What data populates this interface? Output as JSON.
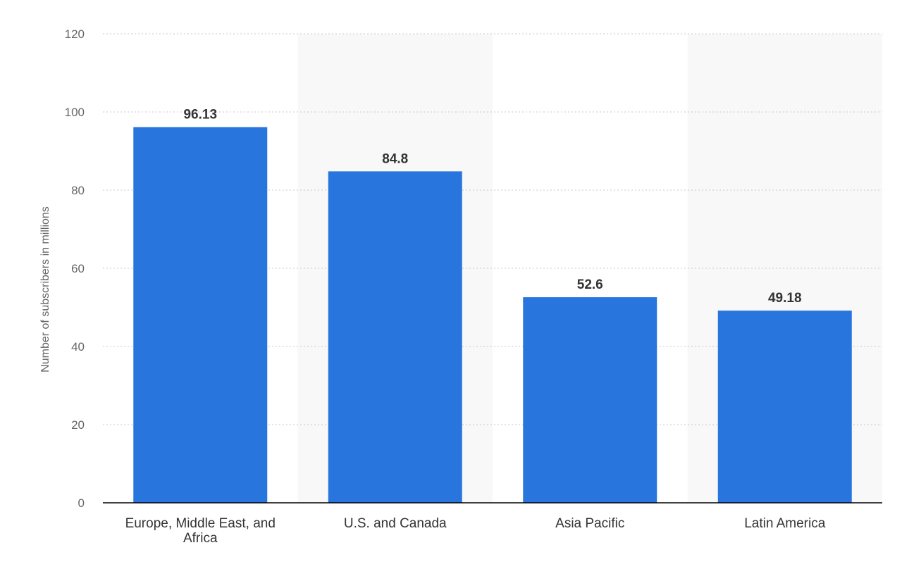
{
  "chart_data": {
    "type": "bar",
    "categories": [
      "Europe, Middle East, and Africa",
      "U.S. and Canada",
      "Asia Pacific",
      "Latin America"
    ],
    "category_lines": [
      [
        "Europe, Middle East, and",
        "Africa"
      ],
      [
        "U.S. and Canada"
      ],
      [
        "Asia Pacific"
      ],
      [
        "Latin America"
      ]
    ],
    "values": [
      96.13,
      84.8,
      52.6,
      49.18
    ],
    "value_labels": [
      "96.13",
      "84.8",
      "52.6",
      "49.18"
    ],
    "ylabel": "Number of subscribers in millions",
    "ylim": [
      0,
      120
    ],
    "yticks": [
      0,
      20,
      40,
      60,
      80,
      100,
      120
    ],
    "grid": true,
    "colors": {
      "bar": "#2876dd"
    }
  }
}
